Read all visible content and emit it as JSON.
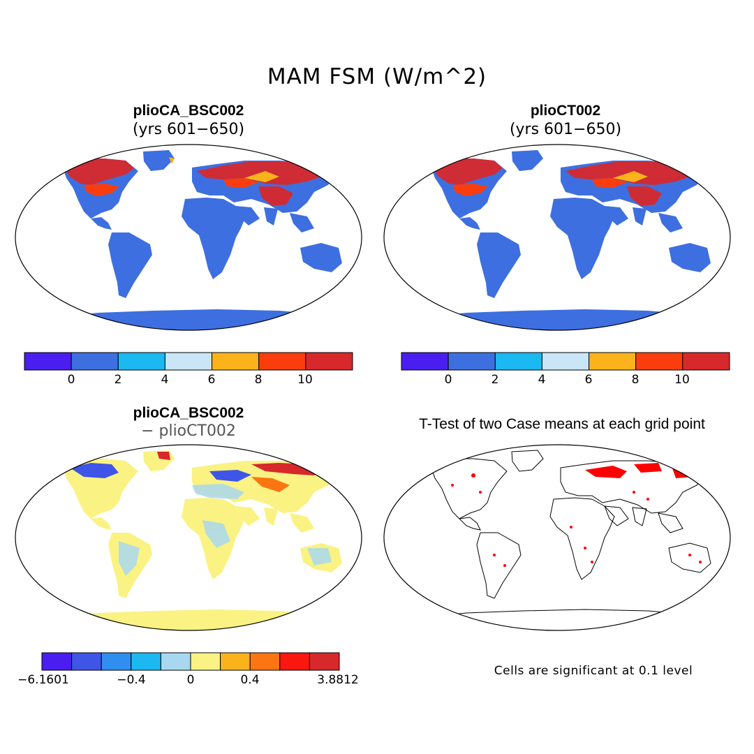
{
  "title": "MAM FSM (W/m^2)",
  "panels": {
    "top_left": {
      "title": "plioCA_BSC002",
      "subtitle": "(yrs 601−650)"
    },
    "top_right": {
      "title": "plioCT002",
      "subtitle": "(yrs 601−650)"
    },
    "bottom_left": {
      "title": "plioCA_BSC002",
      "subtitle": "− plioCT002"
    },
    "bottom_right": {
      "title": "T-Test of two Case means at each grid point",
      "note": "Cells are significant at 0.1 level"
    }
  },
  "colorbars": {
    "absolute": {
      "colors": [
        "#4a1ef0",
        "#3e6fe0",
        "#1cb8f2",
        "#c8e6f5",
        "#fbb31c",
        "#fb3d0d",
        "#d7282b"
      ],
      "ticks": [
        "0",
        "2",
        "4",
        "6",
        "8",
        "10"
      ]
    },
    "difference": {
      "colors": [
        "#4a1ef0",
        "#3f55e8",
        "#2f8ef0",
        "#1cb8f2",
        "#a8d8ef",
        "#faf283",
        "#fbb31c",
        "#fb7612",
        "#fb160f",
        "#d7282b"
      ],
      "ticks": [
        "−6.1601",
        "−0.4",
        "0",
        "0.4",
        "3.8812"
      ]
    }
  },
  "map_colors": {
    "ocean": "#ffffff",
    "land_low": "#3e6fe0",
    "snow_high": "#d7282b",
    "snow_mid": "#fb3d0d",
    "diff_land": "#faf283",
    "diff_land_alt": "#a8d8ef",
    "signif": "#ff0000"
  }
}
